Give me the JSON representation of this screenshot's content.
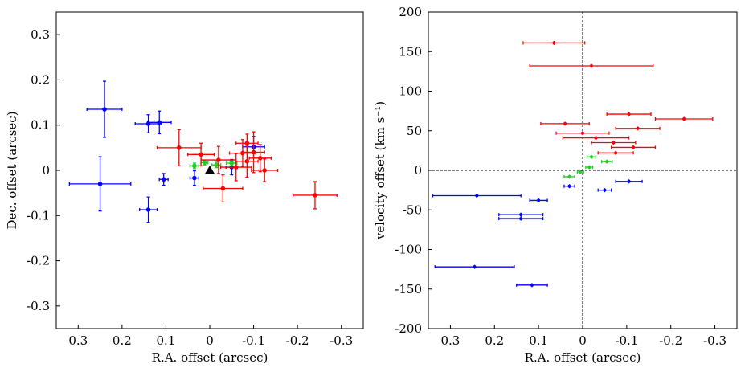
{
  "chart_data": [
    {
      "type": "scatter",
      "xlabel": "R.A. offset (arcsec)",
      "ylabel": "Dec. offset (arcsec)",
      "xlim": [
        0.35,
        -0.35
      ],
      "ylim": [
        -0.35,
        0.35
      ],
      "xticks": [
        0.3,
        0.2,
        0.1,
        0,
        -0.1,
        -0.2,
        -0.3
      ],
      "xtick_labels": [
        "0.3",
        "0.2",
        "0.1",
        "0",
        "-0.1",
        "-0.2",
        "-0.3"
      ],
      "yticks": [
        0.3,
        0.2,
        0.1,
        0,
        -0.1,
        -0.2,
        -0.3
      ],
      "ytick_labels": [
        "0.3",
        "0.2",
        "0.1",
        "0",
        "-0.1",
        "-0.2",
        "-0.3"
      ],
      "grid": false,
      "series": [
        {
          "name": "blue",
          "color": "#0000ff",
          "points": [
            {
              "x": 0.24,
              "y": 0.135,
              "xerr": 0.04,
              "yerr": 0.062
            },
            {
              "x": 0.25,
              "y": -0.03,
              "xerr": 0.07,
              "yerr": 0.06
            },
            {
              "x": 0.14,
              "y": 0.103,
              "xerr": 0.03,
              "yerr": 0.02
            },
            {
              "x": 0.115,
              "y": 0.106,
              "xerr": 0.027,
              "yerr": 0.025
            },
            {
              "x": 0.14,
              "y": -0.087,
              "xerr": 0.02,
              "yerr": 0.028
            },
            {
              "x": 0.105,
              "y": -0.02,
              "xerr": 0.01,
              "yerr": 0.013
            },
            {
              "x": 0.035,
              "y": -0.017,
              "xerr": 0.01,
              "yerr": 0.016
            },
            {
              "x": -0.05,
              "y": 0.007,
              "xerr": 0.013,
              "yerr": 0.017
            },
            {
              "x": -0.1,
              "y": 0.052,
              "xerr": 0.025,
              "yerr": 0.023
            }
          ]
        },
        {
          "name": "green",
          "color": "#22cc22",
          "points": [
            {
              "x": 0.035,
              "y": 0.01,
              "xerr": 0.01,
              "yerr": 0.006
            },
            {
              "x": 0.012,
              "y": 0.017,
              "xerr": 0.008,
              "yerr": 0.005
            },
            {
              "x": -0.015,
              "y": 0.012,
              "xerr": 0.01,
              "yerr": 0.006
            },
            {
              "x": -0.05,
              "y": 0.016,
              "xerr": 0.012,
              "yerr": 0.006
            }
          ]
        },
        {
          "name": "red",
          "color": "#ff0000",
          "points": [
            {
              "x": 0.07,
              "y": 0.05,
              "xerr": 0.05,
              "yerr": 0.04
            },
            {
              "x": 0.02,
              "y": 0.035,
              "xerr": 0.03,
              "yerr": 0.025
            },
            {
              "x": -0.02,
              "y": 0.023,
              "xerr": 0.04,
              "yerr": 0.03
            },
            {
              "x": -0.03,
              "y": -0.04,
              "xerr": 0.045,
              "yerr": 0.03
            },
            {
              "x": -0.06,
              "y": 0.007,
              "xerr": 0.035,
              "yerr": 0.03
            },
            {
              "x": -0.075,
              "y": 0.038,
              "xerr": 0.03,
              "yerr": 0.03
            },
            {
              "x": -0.085,
              "y": 0.02,
              "xerr": 0.025,
              "yerr": 0.035
            },
            {
              "x": -0.1,
              "y": 0.04,
              "xerr": 0.025,
              "yerr": 0.045
            },
            {
              "x": -0.115,
              "y": 0.027,
              "xerr": 0.025,
              "yerr": 0.03
            },
            {
              "x": -0.125,
              "y": 0.0,
              "xerr": 0.03,
              "yerr": 0.025
            },
            {
              "x": -0.085,
              "y": 0.06,
              "xerr": 0.025,
              "yerr": 0.02
            },
            {
              "x": -0.24,
              "y": -0.055,
              "xerr": 0.05,
              "yerr": 0.03
            }
          ]
        },
        {
          "name": "marker",
          "color": "#000000",
          "marker": "triangle",
          "points": [
            {
              "x": 0.0,
              "y": 0.0
            }
          ]
        }
      ]
    },
    {
      "type": "scatter",
      "xlabel": "R.A. offset (arcsec)",
      "ylabel": "velocity offset (km s⁻¹)",
      "xlim": [
        0.35,
        -0.35
      ],
      "ylim": [
        -200,
        200
      ],
      "xticks": [
        0.3,
        0.2,
        0.1,
        0,
        -0.1,
        -0.2,
        -0.3
      ],
      "xtick_labels": [
        "0.3",
        "0.2",
        "0.1",
        "0",
        "-0.1",
        "-0.2",
        "-0.3"
      ],
      "yticks": [
        200,
        150,
        100,
        50,
        0,
        -50,
        -100,
        -150,
        -200
      ],
      "ytick_labels": [
        "200",
        "150",
        "100",
        "50",
        "0",
        "-50",
        "-100",
        "-150",
        "-200"
      ],
      "reference_lines": [
        "x = 0 dashed",
        "y = 0 dashed"
      ],
      "grid": false,
      "series": [
        {
          "name": "red",
          "color": "#ff0000",
          "points": [
            {
              "x": 0.065,
              "y": 161,
              "xerr": 0.07
            },
            {
              "x": -0.02,
              "y": 132,
              "xerr": 0.14
            },
            {
              "x": -0.105,
              "y": 71,
              "xerr": 0.05
            },
            {
              "x": -0.23,
              "y": 65,
              "xerr": 0.065
            },
            {
              "x": 0.04,
              "y": 59,
              "xerr": 0.055
            },
            {
              "x": -0.125,
              "y": 53,
              "xerr": 0.05
            },
            {
              "x": 0.0,
              "y": 47,
              "xerr": 0.06
            },
            {
              "x": -0.03,
              "y": 41,
              "xerr": 0.075
            },
            {
              "x": -0.07,
              "y": 35,
              "xerr": 0.05
            },
            {
              "x": -0.115,
              "y": 29,
              "xerr": 0.05
            },
            {
              "x": -0.075,
              "y": 22,
              "xerr": 0.04
            }
          ]
        },
        {
          "name": "green",
          "color": "#22cc22",
          "points": [
            {
              "x": -0.02,
              "y": 17,
              "xerr": 0.01
            },
            {
              "x": -0.055,
              "y": 11,
              "xerr": 0.012
            },
            {
              "x": -0.015,
              "y": 4,
              "xerr": 0.008
            },
            {
              "x": 0.005,
              "y": -2,
              "xerr": 0.007
            },
            {
              "x": 0.03,
              "y": -8,
              "xerr": 0.012
            }
          ]
        },
        {
          "name": "blue",
          "color": "#0000ff",
          "points": [
            {
              "x": -0.105,
              "y": -14,
              "xerr": 0.03
            },
            {
              "x": 0.03,
              "y": -20,
              "xerr": 0.012
            },
            {
              "x": -0.05,
              "y": -25,
              "xerr": 0.015
            },
            {
              "x": 0.24,
              "y": -32,
              "xerr": 0.1
            },
            {
              "x": 0.1,
              "y": -38,
              "xerr": 0.02
            },
            {
              "x": 0.14,
              "y": -56,
              "xerr": 0.05
            },
            {
              "x": 0.14,
              "y": -61,
              "xerr": 0.05
            },
            {
              "x": 0.245,
              "y": -122,
              "xerr": 0.09
            },
            {
              "x": 0.115,
              "y": -145,
              "xerr": 0.035
            }
          ]
        }
      ]
    }
  ]
}
